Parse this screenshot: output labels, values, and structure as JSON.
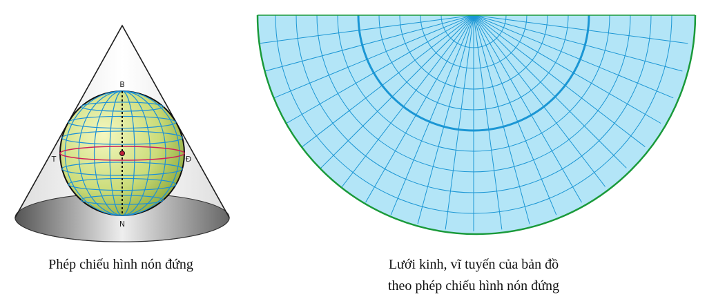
{
  "cone_figure": {
    "labels": {
      "north": "B",
      "south": "N",
      "west": "T",
      "east": "Đ"
    },
    "caption": "Phép chiếu hình nón đứng"
  },
  "map_figure": {
    "caption_lines": [
      "Lưới kinh, vĩ tuyến của bản đồ",
      "theo phép chiếu hình nón đứng"
    ]
  }
}
